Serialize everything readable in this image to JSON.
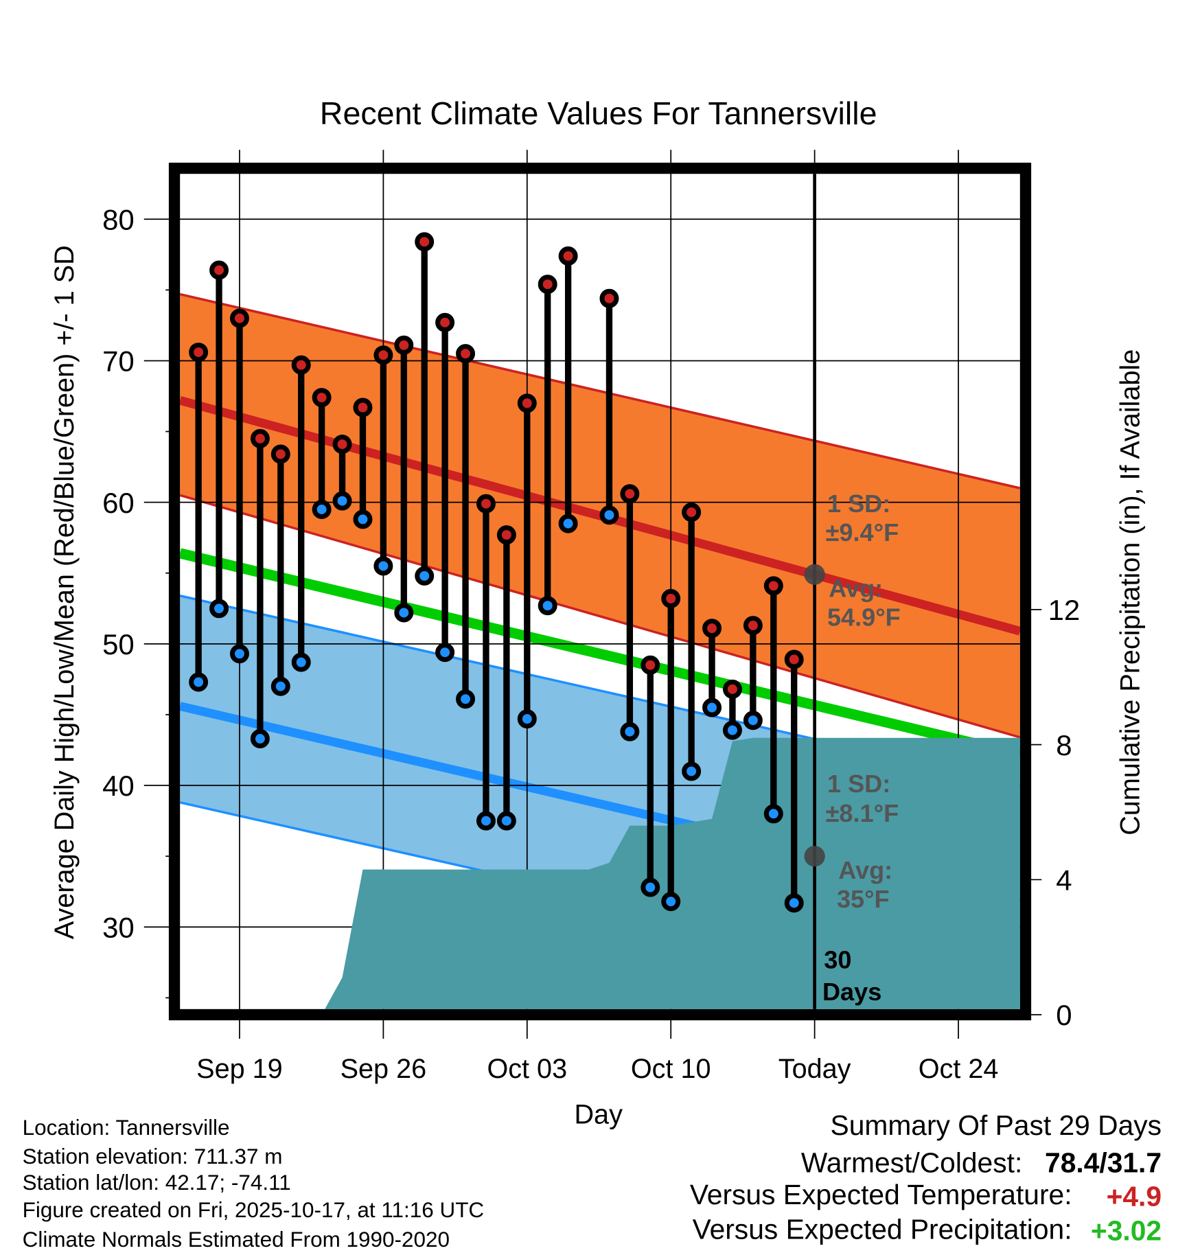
{
  "chart_data": {
    "type": "line",
    "title": "Recent Climate Values For Tannersville",
    "xlabel": "Day",
    "ylabel": "Average Daily High/Low/Mean (Red/Blue/Green) +/- 1 SD",
    "y2label": "Cumulative Precipitation (in), If Available",
    "x_units": "days relative to today (Oct 17)",
    "xlim": [
      -30.9,
      10
    ],
    "ylim": [
      24.2,
      83.2
    ],
    "y2lim": [
      0,
      24.7
    ],
    "grid": true,
    "x_ticks": [
      {
        "x": -28,
        "label": "Sep 19"
      },
      {
        "x": -21,
        "label": "Sep 26"
      },
      {
        "x": -14,
        "label": "Oct 03"
      },
      {
        "x": -7,
        "label": "Oct 10"
      },
      {
        "x": 0,
        "label": "Today"
      },
      {
        "x": 7,
        "label": "Oct 24"
      }
    ],
    "y_ticks": [
      30,
      40,
      50,
      60,
      70,
      80
    ],
    "y_ticks_labels": [
      "30",
      "40",
      "50",
      "60",
      "70",
      "80"
    ],
    "y2_ticks": [
      0,
      4,
      8,
      12
    ],
    "y2_ticks_labels": [
      "0",
      "4",
      "8",
      "12"
    ],
    "daily": [
      [
        -30,
        70.6,
        47.3
      ],
      [
        -29,
        76.4,
        52.5
      ],
      [
        -28,
        73.0,
        49.3
      ],
      [
        -27,
        64.5,
        43.3
      ],
      [
        -26,
        63.4,
        47.0
      ],
      [
        -25,
        69.7,
        48.7
      ],
      [
        -24,
        67.4,
        59.5
      ],
      [
        -23,
        64.1,
        60.1
      ],
      [
        -22,
        66.7,
        58.8
      ],
      [
        -21,
        70.4,
        55.5
      ],
      [
        -20,
        71.1,
        52.2
      ],
      [
        -19,
        78.4,
        54.8
      ],
      [
        -18,
        72.7,
        49.4
      ],
      [
        -17,
        70.5,
        46.1
      ],
      [
        -16,
        59.9,
        37.5
      ],
      [
        -15,
        57.7,
        37.5
      ],
      [
        -14,
        67.0,
        44.7
      ],
      [
        -13,
        75.4,
        52.7
      ],
      [
        -12,
        77.4,
        58.5
      ],
      [
        -10,
        74.4,
        59.1
      ],
      [
        -9,
        60.6,
        43.8
      ],
      [
        -8,
        48.5,
        32.8
      ],
      [
        -7,
        53.2,
        31.8
      ],
      [
        -6,
        59.3,
        41.0
      ],
      [
        -5,
        51.1,
        45.5
      ],
      [
        -4,
        46.8,
        43.9
      ],
      [
        -3,
        51.3,
        44.6
      ],
      [
        -2,
        54.1,
        38.0
      ],
      [
        -1,
        48.9,
        31.7
      ]
    ],
    "normal_high": {
      "start": 67.2,
      "end": 50.9
    },
    "normal_high_plus_sd": {
      "start": 74.7,
      "end": 61.0
    },
    "normal_high_minus_sd": {
      "start": 60.5,
      "end": 43.4
    },
    "normal_mean": {
      "start": 56.4,
      "end": 42.2
    },
    "normal_low": {
      "start": 45.6,
      "end": 31.8
    },
    "normal_low_plus_sd": {
      "start": 53.4,
      "end": 40.0
    },
    "normal_low_minus_sd": {
      "start": 38.8,
      "end": 25.4
    },
    "precip_cumulative": [
      [
        -30.9,
        0
      ],
      [
        -24,
        0
      ],
      [
        -23,
        1.1
      ],
      [
        -22,
        4.3
      ],
      [
        -11,
        4.3
      ],
      [
        -10,
        4.5
      ],
      [
        -9,
        5.6
      ],
      [
        -7,
        5.6
      ],
      [
        -6,
        5.7
      ],
      [
        -5,
        5.8
      ],
      [
        -4,
        8.1
      ],
      [
        -3,
        8.2
      ],
      [
        10,
        8.2
      ]
    ],
    "annotations": {
      "high_sd_l1": "1 SD:",
      "high_sd_l2": "±9.4°F",
      "high_avg_l1": "Avg:",
      "high_avg_l2": "54.9°F",
      "high_avg_value": 54.9,
      "low_sd_l1": "1 SD:",
      "low_sd_l2": "±8.1°F",
      "low_avg_l1": "Avg:",
      "low_avg_l2": "35°F",
      "low_avg_value": 35,
      "window_l1": "30",
      "window_l2": "Days"
    },
    "colors": {
      "high": "#cc2222",
      "low": "#1e90ff",
      "mean": "#00cc00",
      "high_band": "#f57a2e",
      "low_band": "#82c0e6",
      "precip": "#4a9ba4",
      "annot": "#555555"
    }
  },
  "footer": {
    "location": "Location: Tannersville",
    "elevation": "Station elevation: 711.37 m",
    "latlon": "Station lat/lon: 42.17; -74.11",
    "created": "Figure created on Fri, 2025-10-17, at 11:16 UTC",
    "normals": "Climate Normals Estimated From 1990-2020"
  },
  "summary": {
    "title": "Summary Of Past 29 Days",
    "warm_cold_label": "Warmest/Coldest:",
    "warm_cold_value": "78.4/31.7",
    "temp_label": "Versus Expected Temperature:",
    "temp_value": "+4.9",
    "precip_label": "Versus Expected Precipitation:",
    "precip_value": "+3.02"
  }
}
